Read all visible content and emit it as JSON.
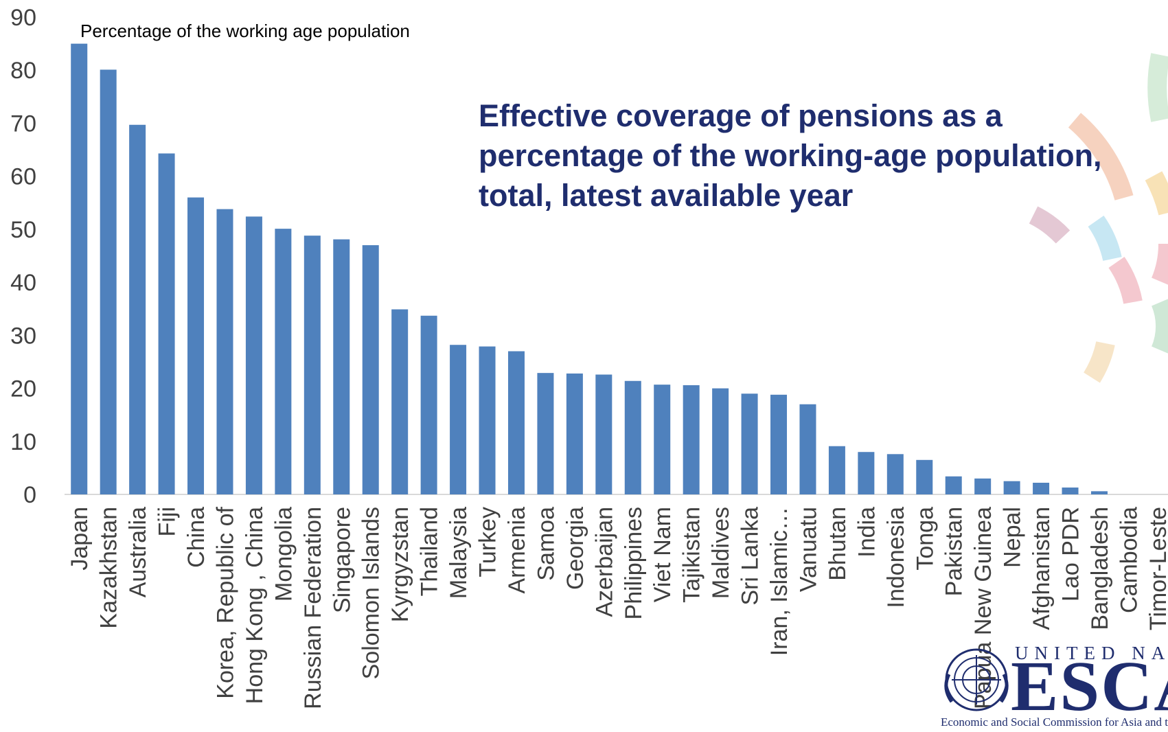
{
  "chart_data": {
    "type": "bar",
    "title": "Effective coverage of pensions as a percentage of the working-age population, total, latest available year",
    "title_lines": [
      "Effective coverage of pensions as a",
      "percentage of the working-age population,",
      "total, latest available year"
    ],
    "subtitle": "Percentage of the working age population",
    "ylim": [
      0,
      90
    ],
    "yticks": [
      0,
      10,
      20,
      30,
      40,
      50,
      60,
      70,
      80,
      90
    ],
    "ytick_labels": [
      "0",
      "10",
      "20",
      "30",
      "40",
      "50",
      "60",
      "70",
      "80",
      "90"
    ],
    "grid": false,
    "bar_color": "#4f81bd",
    "categories": [
      "Japan",
      "Kazakhstan",
      "Australia",
      "Fiji",
      "China",
      "Korea, Republic of",
      "Hong Kong , China",
      "Mongolia",
      "Russian Federation",
      "Singapore",
      "Solomon Islands",
      "Kyrgyzstan",
      "Thailand",
      "Malaysia",
      "Turkey",
      "Armenia",
      "Samoa",
      "Georgia",
      "Azerbaijan",
      "Philippines",
      "Viet Nam",
      "Tajikistan",
      "Maldives",
      "Sri Lanka",
      "Iran, Islamic…",
      "Vanuatu",
      "Bhutan",
      "India",
      "Indonesia",
      "Tonga",
      "Pakistan",
      "Papua New Guinea",
      "Nepal",
      "Afghanistan",
      "Lao PDR",
      "Bangladesh",
      "Cambodia",
      "Timor-Leste"
    ],
    "values": [
      85.0,
      80.1,
      69.7,
      64.3,
      56.0,
      53.8,
      52.4,
      50.1,
      48.8,
      48.1,
      47.0,
      34.9,
      33.7,
      28.2,
      27.9,
      27.0,
      22.9,
      22.8,
      22.6,
      21.4,
      20.7,
      20.6,
      20.0,
      19.0,
      18.8,
      17.0,
      9.1,
      8.0,
      7.6,
      6.5,
      3.4,
      3.0,
      2.5,
      2.2,
      1.3,
      0.6,
      0.0,
      0.0
    ]
  },
  "logo": {
    "org_top": "UNITED NATIONS",
    "org_name": "ESCAP",
    "org_full": "Economic and Social Commission for Asia and the Pacific",
    "color": "#1f2d6e"
  }
}
